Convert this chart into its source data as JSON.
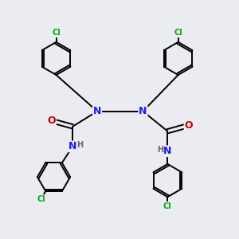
{
  "background_color": "#ebebf2",
  "atom_colors": {
    "C": "#000000",
    "N": "#1a1aff",
    "O": "#cc0000",
    "Cl": "#00aa00",
    "H": "#666666"
  },
  "bond_color": "#000000",
  "bond_width": 1.4,
  "figsize": [
    3.0,
    3.0
  ],
  "dpi": 100,
  "xlim": [
    0,
    10
  ],
  "ylim": [
    0,
    10
  ]
}
